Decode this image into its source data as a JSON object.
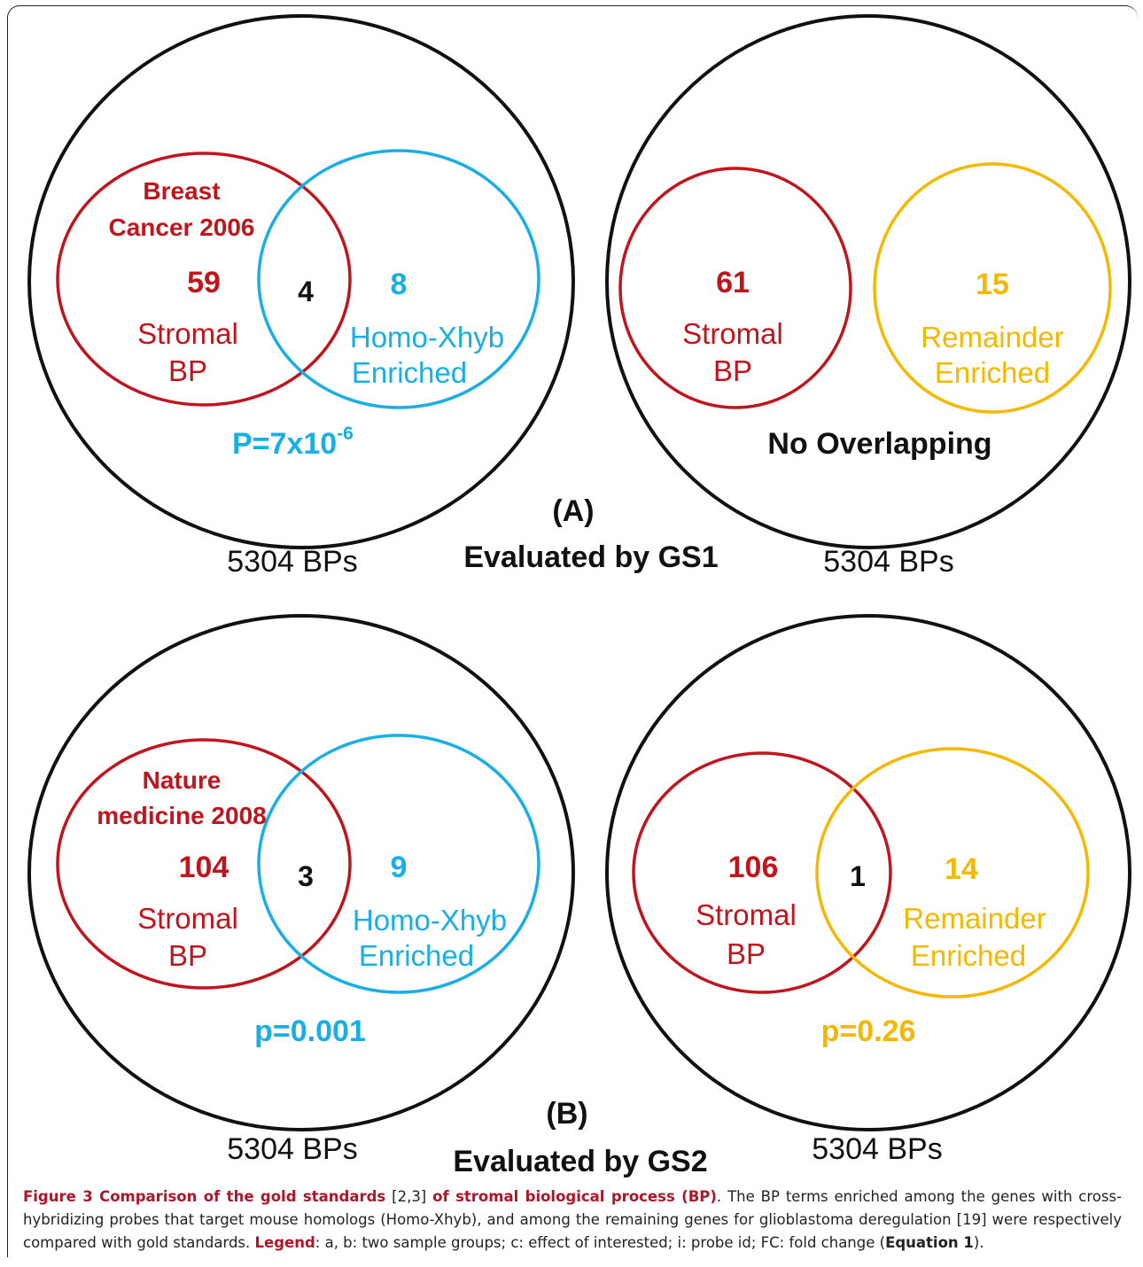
{
  "panel_a": {
    "label": "(A)",
    "subtitle": "Evaluated by GS1",
    "left": {
      "universe": "5304 BPs",
      "red_title_1": "Breast",
      "red_title_2": "Cancer 2006",
      "red_count": "59",
      "red_label_1": "Stromal",
      "red_label_2": "BP",
      "overlap": "4",
      "other_count": "8",
      "other_label_1": "Homo-Xhyb",
      "other_label_2": "Enriched",
      "pvalue_base": "P=7x10",
      "pvalue_exp": "-6"
    },
    "right": {
      "universe": "5304 BPs",
      "red_count": "61",
      "red_label_1": "Stromal",
      "red_label_2": "BP",
      "other_count": "15",
      "other_label_1": "Remainder",
      "other_label_2": "Enriched",
      "note": "No Overlapping"
    }
  },
  "panel_b": {
    "label": "(B)",
    "subtitle": "Evaluated by GS2",
    "left": {
      "universe": "5304 BPs",
      "red_title_1": "Nature",
      "red_title_2": "medicine 2008",
      "red_count": "104",
      "red_label_1": "Stromal",
      "red_label_2": "BP",
      "overlap": "3",
      "other_count": "9",
      "other_label_1": "Homo-Xhyb",
      "other_label_2": "Enriched",
      "pvalue": "p=0.001"
    },
    "right": {
      "universe": "5304 BPs",
      "red_count": "106",
      "red_label_1": "Stromal",
      "red_label_2": "BP",
      "overlap": "1",
      "other_count": "14",
      "other_label_1": "Remainder",
      "other_label_2": "Enriched",
      "pvalue": "p=0.26"
    }
  },
  "caption": {
    "title": "Figure 3 Comparison of the gold standards",
    "refs": " [2,3] ",
    "title_2": "of stromal biological process (BP)",
    "body": ". The BP terms enriched among the genes with cross-hybridizing probes that target mouse homologs (Homo-Xhyb), and among the remaining genes for glioblastoma deregulation [19] were respectively compared with gold standards. ",
    "legend_label": "Legend",
    "legend_text": ": a, b: two sample groups; c: effect of interested; i: probe id; FC: fold change (",
    "equation": "Equation 1",
    "end": ")."
  },
  "colors": {
    "red": "#c0151c",
    "blue": "#19aee6",
    "gold": "#f5b800",
    "outline": "#111111"
  }
}
